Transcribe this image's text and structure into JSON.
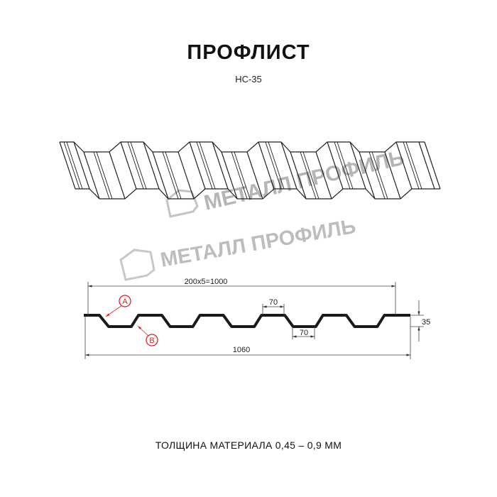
{
  "header": {
    "title": "ПРОФЛИСТ",
    "model": "НС-35"
  },
  "watermark": {
    "text": "МЕТАЛЛ ПРОФИЛЬ",
    "color": "#b5b5b5"
  },
  "drawing": {
    "dim_pitch": "200x5=1000",
    "dim_total_width": "1060",
    "dim_top_flange": "70",
    "dim_bottom_flange": "70",
    "dim_height": "35",
    "marker_a": "A",
    "marker_b": "B",
    "marker_color": "#e02020"
  },
  "footer": {
    "thickness_note": "ТОЛЩИНА МАТЕРИАЛА 0,45 – 0,9 ММ"
  }
}
